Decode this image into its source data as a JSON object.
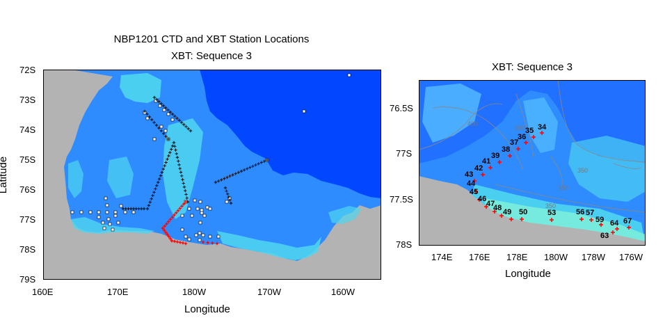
{
  "left_map": {
    "title_line1": "NBP1201 CTD and XBT Station Locations",
    "title_line2": "XBT: Sequence 3",
    "xlabel": "Longitude",
    "ylabel": "Latitude",
    "x_ticks": [
      "160E",
      "170E",
      "180W",
      "170W",
      "160W"
    ],
    "y_ticks": [
      "72S",
      "73S",
      "74S",
      "75S",
      "76S",
      "77S",
      "78S",
      "79S"
    ],
    "lon_range": [
      "160E",
      "155W"
    ],
    "lat_range": [
      "72S",
      "79S"
    ],
    "colors": {
      "ocean_deep": "#0047ff",
      "shelf": "#2f8cff",
      "shallow": "#4fd6f0",
      "land": "#b3b3b3",
      "ctd_marker": "#ffffff",
      "xbt_marker": "#000000",
      "xbt_sequence3": "#ff0000"
    }
  },
  "right_map": {
    "title": "XBT: Sequence 3",
    "xlabel": "Longitude",
    "x_ticks": [
      "174E",
      "176E",
      "178E",
      "180W",
      "178W",
      "176W"
    ],
    "y_ticks": [
      "76.5S",
      "77S",
      "77.5S",
      "78S"
    ],
    "contour_labels": [
      "400",
      "350",
      "350",
      "350",
      "350"
    ],
    "stations": [
      {
        "label": "34"
      },
      {
        "label": "35"
      },
      {
        "label": "36"
      },
      {
        "label": "37"
      },
      {
        "label": "38"
      },
      {
        "label": "39"
      },
      {
        "label": "41"
      },
      {
        "label": "42"
      },
      {
        "label": "43"
      },
      {
        "label": "44"
      },
      {
        "label": "45"
      },
      {
        "label": "46"
      },
      {
        "label": "47"
      },
      {
        "label": "48"
      },
      {
        "label": "49"
      },
      {
        "label": "50"
      },
      {
        "label": "53"
      },
      {
        "label": "56"
      },
      {
        "label": "57"
      },
      {
        "label": "59"
      },
      {
        "label": "63"
      },
      {
        "label": "64"
      },
      {
        "label": "67"
      }
    ],
    "colors": {
      "marker": "#ff0000",
      "contour": "#888888"
    }
  }
}
